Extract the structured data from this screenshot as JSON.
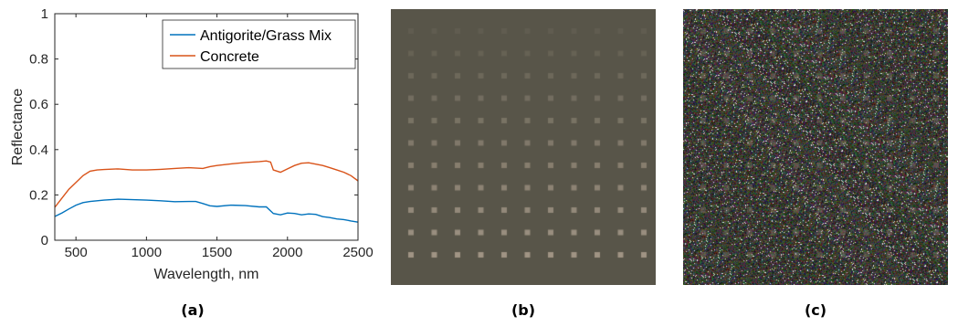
{
  "chart_data": {
    "type": "line",
    "xlabel": "Wavelength, nm",
    "ylabel": "Reflectance",
    "xlim": [
      350,
      2500
    ],
    "ylim": [
      0,
      1
    ],
    "xticks": [
      "500",
      "1000",
      "1500",
      "2000",
      "2500"
    ],
    "yticks": [
      "0",
      "0.2",
      "0.4",
      "0.6",
      "0.8",
      "1"
    ],
    "legend_position": "top-right",
    "series": [
      {
        "name": "Antigorite/Grass Mix",
        "color": "#0072BD",
        "x": [
          350,
          400,
          450,
          500,
          550,
          600,
          700,
          800,
          900,
          1000,
          1100,
          1200,
          1300,
          1350,
          1400,
          1450,
          1500,
          1600,
          1700,
          1800,
          1850,
          1900,
          1950,
          2000,
          2050,
          2100,
          2150,
          2200,
          2250,
          2300,
          2350,
          2400,
          2450,
          2500
        ],
        "y": [
          0.105,
          0.12,
          0.138,
          0.155,
          0.166,
          0.171,
          0.177,
          0.181,
          0.179,
          0.177,
          0.174,
          0.17,
          0.171,
          0.171,
          0.162,
          0.152,
          0.149,
          0.155,
          0.153,
          0.147,
          0.147,
          0.118,
          0.112,
          0.12,
          0.118,
          0.112,
          0.116,
          0.114,
          0.104,
          0.1,
          0.094,
          0.091,
          0.085,
          0.08
        ]
      },
      {
        "name": "Concrete",
        "color": "#D95319",
        "x": [
          350,
          400,
          450,
          500,
          550,
          600,
          650,
          700,
          800,
          900,
          1000,
          1100,
          1200,
          1300,
          1400,
          1450,
          1500,
          1600,
          1700,
          1800,
          1850,
          1880,
          1900,
          1950,
          2000,
          2050,
          2100,
          2150,
          2200,
          2250,
          2300,
          2350,
          2400,
          2450,
          2500
        ],
        "y": [
          0.145,
          0.185,
          0.225,
          0.255,
          0.285,
          0.305,
          0.31,
          0.312,
          0.315,
          0.31,
          0.31,
          0.313,
          0.317,
          0.32,
          0.317,
          0.325,
          0.33,
          0.337,
          0.343,
          0.347,
          0.35,
          0.345,
          0.31,
          0.3,
          0.315,
          0.33,
          0.34,
          0.342,
          0.336,
          0.33,
          0.32,
          0.31,
          0.3,
          0.285,
          0.262
        ]
      }
    ]
  },
  "panel_b": {
    "background": "#585549",
    "grid_rows": 11,
    "grid_cols": 11,
    "square_color": "#a09484"
  },
  "panel_c": {
    "background": "#3a3a34"
  },
  "captions": {
    "a": "(a)",
    "b": "(b)",
    "c": "(c)"
  }
}
